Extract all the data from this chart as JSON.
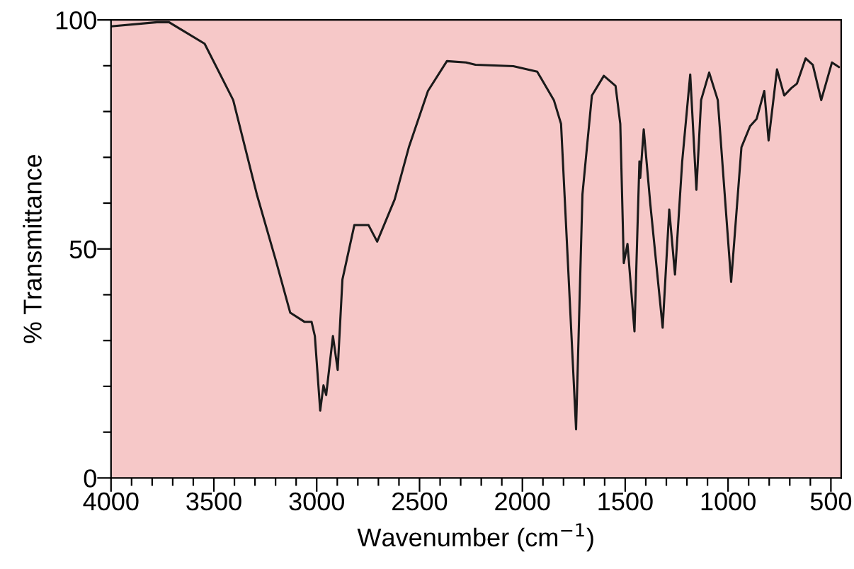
{
  "chart_data": {
    "type": "line",
    "xlabel": "Wavenumber (cm$^{−1}$)",
    "ylabel": "% Transmittance",
    "xlim": [
      4000,
      450
    ],
    "ylim": [
      0,
      100
    ],
    "xticks": [
      4000,
      {
        "value": 3900,
        "label": null
      },
      {
        "value": 3800,
        "label": null
      },
      {
        "value": 3700,
        "label": null
      },
      {
        "value": 3600,
        "label": null
      },
      3500,
      {
        "value": 3400,
        "label": null
      },
      {
        "value": 3300,
        "label": null
      },
      {
        "value": 3200,
        "label": null
      },
      {
        "value": 3100,
        "label": null
      },
      3000,
      {
        "value": 2900,
        "label": null
      },
      {
        "value": 2800,
        "label": null
      },
      {
        "value": 2700,
        "label": null
      },
      {
        "value": 2600,
        "label": null
      },
      2500,
      {
        "value": 2400,
        "label": null
      },
      {
        "value": 2300,
        "label": null
      },
      {
        "value": 2200,
        "label": null
      },
      {
        "value": 2100,
        "label": null
      },
      2000,
      {
        "value": 1900,
        "label": null
      },
      {
        "value": 1800,
        "label": null
      },
      {
        "value": 1700,
        "label": null
      },
      {
        "value": 1600,
        "label": null
      },
      1500,
      {
        "value": 1400,
        "label": null
      },
      {
        "value": 1300,
        "label": null
      },
      {
        "value": 1200,
        "label": null
      },
      {
        "value": 1100,
        "label": null
      },
      1000,
      {
        "value": 900,
        "label": null
      },
      {
        "value": 800,
        "label": null
      },
      {
        "value": 700,
        "label": null
      },
      {
        "value": 600,
        "label": null
      },
      500
    ],
    "yticks": [
      0,
      {
        "value": 10,
        "label": null
      },
      {
        "value": 20,
        "label": null
      },
      {
        "value": 30,
        "label": null
      },
      {
        "value": 40,
        "label": null
      },
      50,
      {
        "value": 60,
        "label": null
      },
      {
        "value": 70,
        "label": null
      },
      {
        "value": 80,
        "label": null
      },
      {
        "value": 90,
        "label": null
      },
      100
    ],
    "grid": false,
    "series": [
      {
        "color": "#1a1a1a",
        "x": [
          4000,
          3776,
          3718,
          3545,
          3406,
          3291,
          3198,
          3129,
          3060,
          3025,
          3009,
          2983,
          2967,
          2954,
          2921,
          2898,
          2875,
          2817,
          2748,
          2706,
          2621,
          2552,
          2459,
          2367,
          2274,
          2228,
          2044,
          1928,
          1847,
          1812,
          1778,
          1739,
          1708,
          1662,
          1604,
          1547,
          1524,
          1507,
          1489,
          1455,
          1431,
          1427,
          1410,
          1378,
          1318,
          1286,
          1258,
          1223,
          1184,
          1154,
          1131,
          1092,
          1050,
          985,
          935,
          893,
          861,
          824,
          803,
          762,
          727,
          693,
          665,
          623,
          588,
          547,
          495,
          461
        ],
        "values": [
          98.6,
          99.5,
          99.5,
          94.8,
          82.5,
          61.9,
          47.4,
          36.1,
          34.1,
          34.1,
          31.0,
          14.7,
          20.2,
          18.1,
          31.0,
          23.6,
          43.3,
          55.2,
          55.2,
          51.6,
          60.8,
          72.2,
          84.5,
          91.0,
          90.7,
          90.2,
          89.9,
          88.7,
          82.5,
          77.3,
          46.4,
          10.6,
          61.9,
          83.5,
          87.8,
          85.6,
          77.3,
          46.9,
          51.1,
          32.0,
          69.1,
          65.5,
          76.1,
          59.8,
          32.8,
          58.6,
          44.4,
          69.1,
          88.1,
          62.9,
          82.5,
          88.5,
          82.5,
          42.8,
          72.2,
          76.8,
          78.4,
          84.5,
          73.7,
          89.2,
          83.5,
          85.1,
          86.1,
          91.6,
          90.2,
          82.5,
          90.7,
          89.7
        ]
      }
    ]
  }
}
